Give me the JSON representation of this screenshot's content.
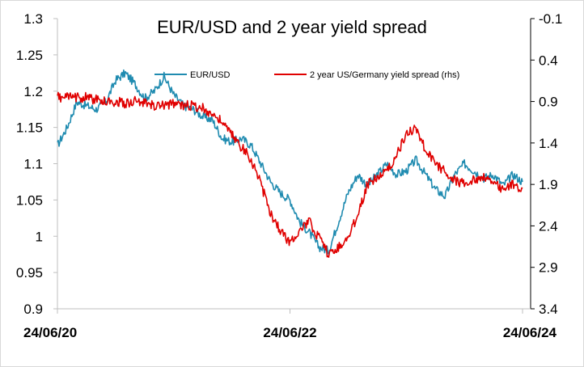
{
  "chart_data": {
    "type": "line",
    "title": "EUR/USD and 2 year yield spread",
    "x_tick_labels": [
      "24/06/20",
      "24/06/22",
      "24/06/24"
    ],
    "y_left": {
      "min": 0.9,
      "max": 1.3,
      "ticks": [
        "0.9",
        "0.95",
        "1",
        "1.05",
        "1.1",
        "1.15",
        "1.2",
        "1.25",
        "1.3"
      ]
    },
    "y_right": {
      "top": -0.1,
      "bottom": 3.4,
      "inverted": true,
      "ticks": [
        "-0.1",
        "0.4",
        "0.9",
        "1.4",
        "1.9",
        "2.4",
        "2.9",
        "3.4"
      ]
    },
    "legend_placement": "top",
    "grid": false,
    "series": [
      {
        "name": "EUR/USD",
        "axis": "left",
        "color": "#1f8bb0",
        "x": [
          "2020-06",
          "2020-07",
          "2020-08",
          "2020-09",
          "2020-10",
          "2020-11",
          "2020-12",
          "2021-01",
          "2021-02",
          "2021-03",
          "2021-04",
          "2021-05",
          "2021-06",
          "2021-07",
          "2021-08",
          "2021-09",
          "2021-10",
          "2021-11",
          "2021-12",
          "2022-01",
          "2022-02",
          "2022-03",
          "2022-04",
          "2022-05",
          "2022-06",
          "2022-07",
          "2022-08",
          "2022-09",
          "2022-10",
          "2022-11",
          "2022-12",
          "2023-01",
          "2023-02",
          "2023-03",
          "2023-04",
          "2023-05",
          "2023-06",
          "2023-07",
          "2023-08",
          "2023-09",
          "2023-10",
          "2023-11",
          "2023-12",
          "2024-01",
          "2024-02",
          "2024-03",
          "2024-04",
          "2024-05",
          "2024-06"
        ],
        "values": [
          1.125,
          1.15,
          1.185,
          1.18,
          1.175,
          1.185,
          1.215,
          1.225,
          1.21,
          1.19,
          1.2,
          1.22,
          1.195,
          1.18,
          1.175,
          1.165,
          1.16,
          1.135,
          1.13,
          1.135,
          1.125,
          1.1,
          1.075,
          1.06,
          1.05,
          1.02,
          1.005,
          0.985,
          0.98,
          1.02,
          1.06,
          1.085,
          1.07,
          1.085,
          1.1,
          1.085,
          1.09,
          1.105,
          1.085,
          1.065,
          1.055,
          1.085,
          1.1,
          1.09,
          1.08,
          1.085,
          1.07,
          1.085,
          1.075
        ]
      },
      {
        "name": "2 year US/Germany yield spread (rhs)",
        "axis": "right",
        "color": "#e00000",
        "x": [
          "2020-06",
          "2020-07",
          "2020-08",
          "2020-09",
          "2020-10",
          "2020-11",
          "2020-12",
          "2021-01",
          "2021-02",
          "2021-03",
          "2021-04",
          "2021-05",
          "2021-06",
          "2021-07",
          "2021-08",
          "2021-09",
          "2021-10",
          "2021-11",
          "2021-12",
          "2022-01",
          "2022-02",
          "2022-03",
          "2022-04",
          "2022-05",
          "2022-06",
          "2022-07",
          "2022-08",
          "2022-09",
          "2022-10",
          "2022-11",
          "2022-12",
          "2023-01",
          "2023-02",
          "2023-03",
          "2023-04",
          "2023-05",
          "2023-06",
          "2023-07",
          "2023-08",
          "2023-09",
          "2023-10",
          "2023-11",
          "2023-12",
          "2024-01",
          "2024-02",
          "2024-03",
          "2024-04",
          "2024-05",
          "2024-06"
        ],
        "values": [
          0.85,
          0.85,
          0.85,
          0.85,
          0.88,
          0.9,
          0.9,
          0.92,
          0.9,
          0.92,
          0.95,
          0.95,
          0.92,
          0.95,
          0.95,
          0.98,
          1.05,
          1.15,
          1.3,
          1.45,
          1.6,
          1.9,
          2.25,
          2.45,
          2.6,
          2.45,
          2.35,
          2.55,
          2.75,
          2.65,
          2.55,
          2.25,
          1.9,
          1.8,
          1.75,
          1.55,
          1.3,
          1.2,
          1.5,
          1.65,
          1.75,
          1.85,
          1.9,
          1.85,
          1.8,
          1.9,
          1.95,
          1.9,
          1.95
        ]
      }
    ]
  }
}
